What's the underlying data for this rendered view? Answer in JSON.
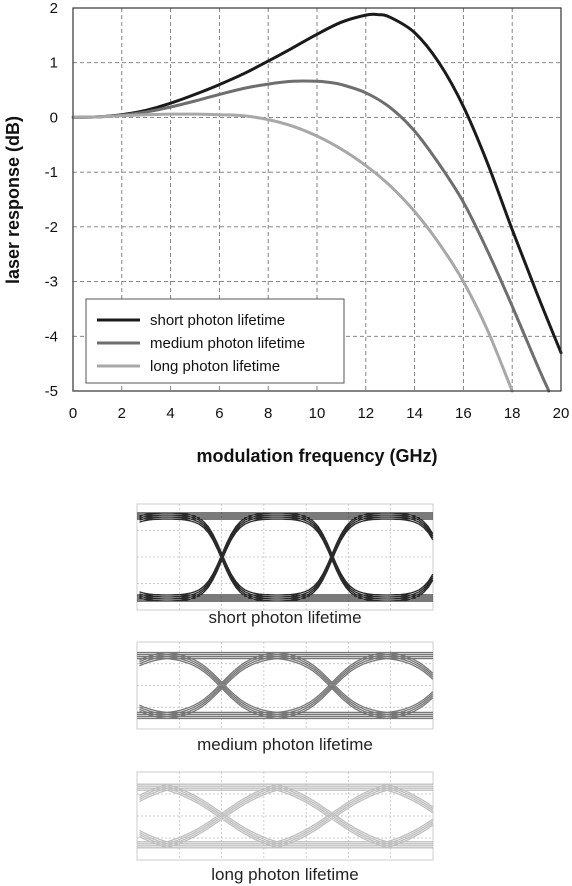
{
  "chart_data": {
    "type": "line",
    "xlabel": "modulation frequency (GHz)",
    "ylabel": "laser response (dB)",
    "xlim": [
      0,
      20
    ],
    "ylim": [
      -5,
      2
    ],
    "xticks": [
      "0",
      "2",
      "4",
      "6",
      "8",
      "10",
      "12",
      "14",
      "16",
      "18",
      "20"
    ],
    "yticks": [
      "2",
      "1",
      "0",
      "-1",
      "-2",
      "-3",
      "-4",
      "-5"
    ],
    "grid": true,
    "legend_position": "bottom-left",
    "series": [
      {
        "name": "short photon lifetime",
        "color": "#1a1a1a",
        "x": [
          0,
          1,
          2,
          3,
          4,
          5,
          6,
          7,
          8,
          9,
          10,
          11,
          12,
          12.5,
          13,
          14,
          15,
          16,
          17,
          18,
          19,
          20
        ],
        "y": [
          0,
          0.01,
          0.05,
          0.13,
          0.26,
          0.42,
          0.6,
          0.8,
          1.03,
          1.27,
          1.52,
          1.74,
          1.87,
          1.88,
          1.83,
          1.55,
          1.0,
          0.2,
          -0.85,
          -2.05,
          -3.2,
          -4.3
        ]
      },
      {
        "name": "medium photon lifetime",
        "color": "#6e6e6e",
        "x": [
          0,
          1,
          2,
          3,
          4,
          5,
          6,
          7,
          8,
          9,
          10,
          10.5,
          11,
          12,
          13,
          14,
          15,
          16,
          17,
          18,
          19,
          19.5
        ],
        "y": [
          0,
          0.01,
          0.04,
          0.1,
          0.19,
          0.3,
          0.42,
          0.53,
          0.61,
          0.66,
          0.66,
          0.64,
          0.6,
          0.45,
          0.18,
          -0.25,
          -0.85,
          -1.55,
          -2.45,
          -3.45,
          -4.5,
          -5.0
        ]
      },
      {
        "name": "long photon lifetime",
        "color": "#a8a8a8",
        "x": [
          0,
          1,
          2,
          3,
          4,
          5,
          6,
          7,
          8,
          9,
          10,
          11,
          12,
          13,
          14,
          15,
          16,
          17,
          18
        ],
        "y": [
          0,
          0.01,
          0.03,
          0.05,
          0.06,
          0.06,
          0.05,
          0.03,
          -0.04,
          -0.16,
          -0.34,
          -0.58,
          -0.88,
          -1.25,
          -1.72,
          -2.3,
          -3.0,
          -3.9,
          -5.0
        ]
      }
    ]
  },
  "eye_diagrams": [
    {
      "label": "short photon lifetime",
      "color": "#2a2a2a"
    },
    {
      "label": "medium photon lifetime",
      "color": "#777777"
    },
    {
      "label": "long photon lifetime",
      "color": "#c0c0c0"
    }
  ]
}
